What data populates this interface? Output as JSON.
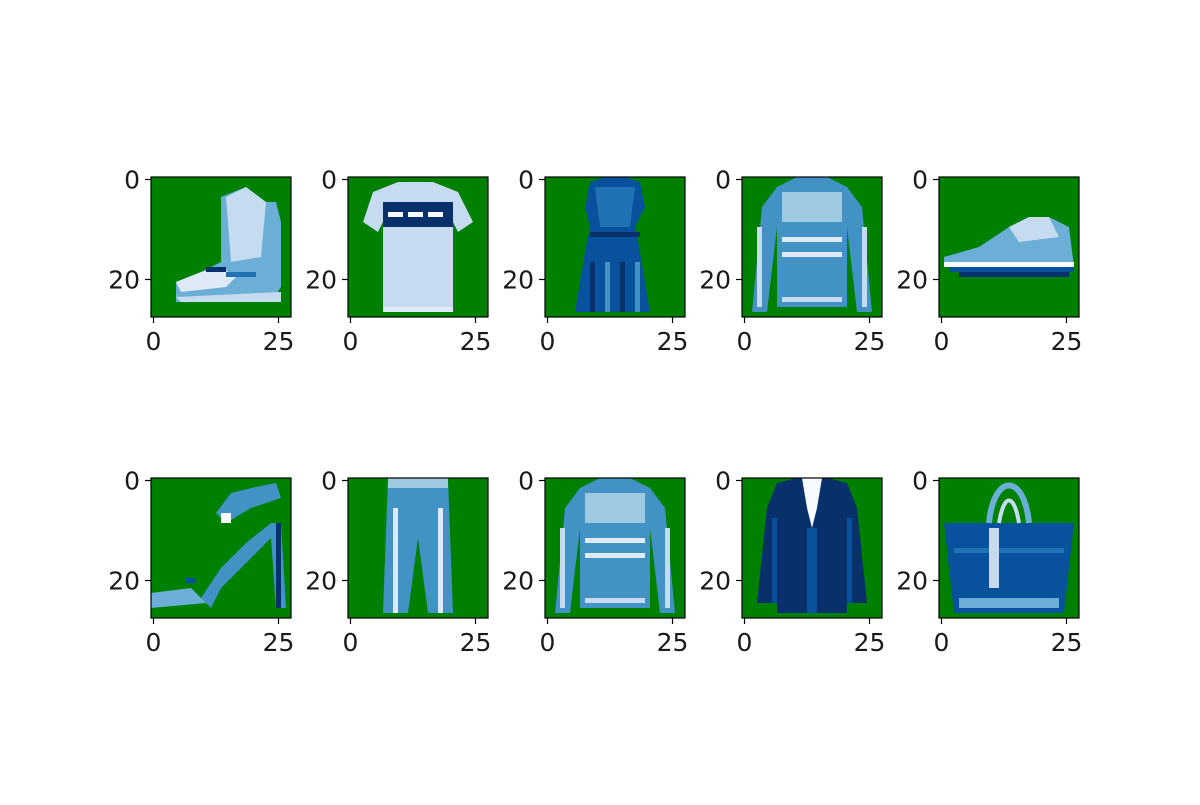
{
  "figure": {
    "background": "#ffffff",
    "panel_background": "#008000",
    "item_palette": [
      "#08306b",
      "#08519c",
      "#2171b5",
      "#4292c6",
      "#6baed6",
      "#9ecae1",
      "#c6dbef",
      "#deebf7",
      "#f7fbff"
    ]
  },
  "chart_data": [
    {
      "type": "heatmap",
      "subject": "ankle boot",
      "rows": 28,
      "cols": 28,
      "xticks": [
        "0",
        "25"
      ],
      "yticks": [
        "0",
        "20"
      ],
      "grid": false
    },
    {
      "type": "heatmap",
      "subject": "t-shirt",
      "rows": 28,
      "cols": 28,
      "xticks": [
        "0",
        "25"
      ],
      "yticks": [
        "0",
        "20"
      ],
      "grid": false
    },
    {
      "type": "heatmap",
      "subject": "dress",
      "rows": 28,
      "cols": 28,
      "xticks": [
        "0",
        "25"
      ],
      "yticks": [
        "0",
        "20"
      ],
      "grid": false
    },
    {
      "type": "heatmap",
      "subject": "pullover",
      "rows": 28,
      "cols": 28,
      "xticks": [
        "0",
        "25"
      ],
      "yticks": [
        "0",
        "20"
      ],
      "grid": false
    },
    {
      "type": "heatmap",
      "subject": "sneaker",
      "rows": 28,
      "cols": 28,
      "xticks": [
        "0",
        "25"
      ],
      "yticks": [
        "0",
        "20"
      ],
      "grid": false
    },
    {
      "type": "heatmap",
      "subject": "sandal",
      "rows": 28,
      "cols": 28,
      "xticks": [
        "0",
        "25"
      ],
      "yticks": [
        "0",
        "20"
      ],
      "grid": false
    },
    {
      "type": "heatmap",
      "subject": "trouser",
      "rows": 28,
      "cols": 28,
      "xticks": [
        "0",
        "25"
      ],
      "yticks": [
        "0",
        "20"
      ],
      "grid": false
    },
    {
      "type": "heatmap",
      "subject": "pullover",
      "rows": 28,
      "cols": 28,
      "xticks": [
        "0",
        "25"
      ],
      "yticks": [
        "0",
        "20"
      ],
      "grid": false
    },
    {
      "type": "heatmap",
      "subject": "coat",
      "rows": 28,
      "cols": 28,
      "xticks": [
        "0",
        "25"
      ],
      "yticks": [
        "0",
        "20"
      ],
      "grid": false
    },
    {
      "type": "heatmap",
      "subject": "bag",
      "rows": 28,
      "cols": 28,
      "xticks": [
        "0",
        "25"
      ],
      "yticks": [
        "0",
        "20"
      ],
      "grid": false
    }
  ]
}
